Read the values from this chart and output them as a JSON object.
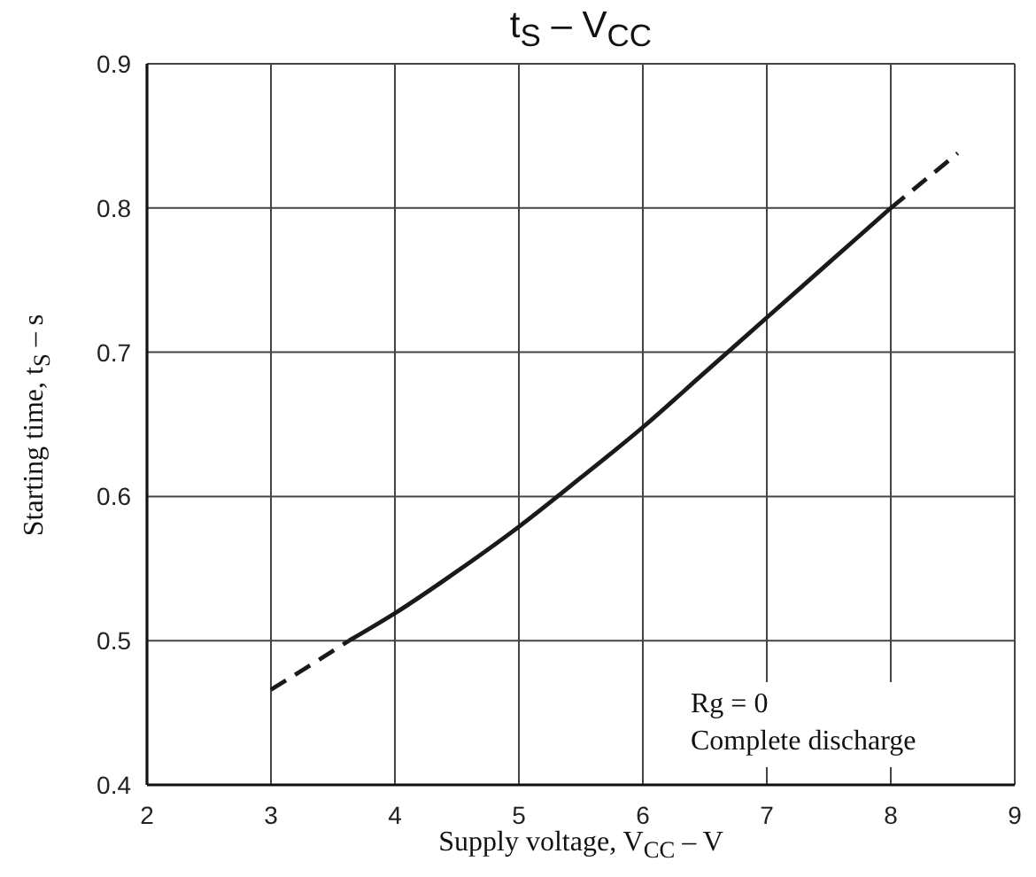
{
  "chart_data": {
    "type": "line",
    "title": "t$_{S}$ – V$_{CC}$",
    "xlabel": "Supply voltage, V$_{CC}$ – V",
    "ylabel": "Starting time, t$_{S}$ – s",
    "annotations": [
      "Rg = 0",
      "Complete discharge"
    ],
    "series": [
      {
        "x": [
          3,
          3.3,
          3.63
        ],
        "values": [
          0.466,
          0.482,
          0.5
        ],
        "color": "#1a1a1a",
        "line_style": "dashed"
      },
      {
        "x": [
          3.63,
          4,
          4.5,
          5,
          5.5,
          6,
          6.5,
          7,
          7.5,
          8
        ],
        "values": [
          0.5,
          0.519,
          0.548,
          0.579,
          0.613,
          0.648,
          0.686,
          0.724,
          0.762,
          0.8
        ],
        "color": "#1a1a1a",
        "line_style": "solid"
      },
      {
        "x": [
          8,
          8.54
        ],
        "values": [
          0.8,
          0.838
        ],
        "color": "#1a1a1a",
        "line_style": "dashed"
      }
    ],
    "xlim": [
      2,
      9
    ],
    "ylim": [
      0.4,
      0.9
    ],
    "xticks": [
      2,
      3,
      4,
      5,
      6,
      7,
      8,
      9
    ],
    "yticks": [
      0.4,
      0.5,
      0.6,
      0.7,
      0.8,
      0.9
    ],
    "grid": true,
    "marker": "none"
  }
}
